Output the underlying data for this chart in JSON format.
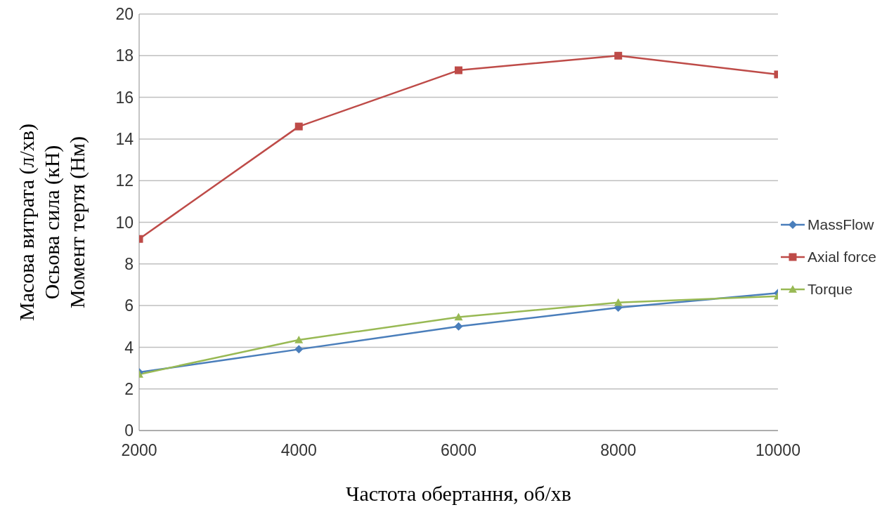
{
  "chart_data": {
    "type": "line",
    "xlabel": "Частота обертання, об/хв",
    "ylabel": "Масова витрата (л/хв)\nОсьова сила (кН)\nМомент тертя (Нм)",
    "x": [
      2000,
      4000,
      6000,
      8000,
      10000
    ],
    "xlim": [
      2000,
      10000
    ],
    "xticks": [
      2000,
      4000,
      6000,
      8000,
      10000
    ],
    "ylim": [
      0,
      20
    ],
    "yticks": [
      0,
      2,
      4,
      6,
      8,
      10,
      12,
      14,
      16,
      18,
      20
    ],
    "grid": "y",
    "legend": "right",
    "line_style": "solid",
    "series": [
      {
        "name": "MassFlow",
        "color": "#4a7ebb",
        "marker": "diamond",
        "values": [
          2.8,
          3.9,
          5.0,
          5.9,
          6.6
        ]
      },
      {
        "name": "Axial force",
        "color": "#be4b48",
        "marker": "square",
        "values": [
          9.2,
          14.6,
          17.3,
          18.0,
          17.1
        ]
      },
      {
        "name": "Torque",
        "color": "#98b954",
        "marker": "triangle",
        "values": [
          2.7,
          4.35,
          5.45,
          6.15,
          6.45
        ]
      }
    ]
  }
}
